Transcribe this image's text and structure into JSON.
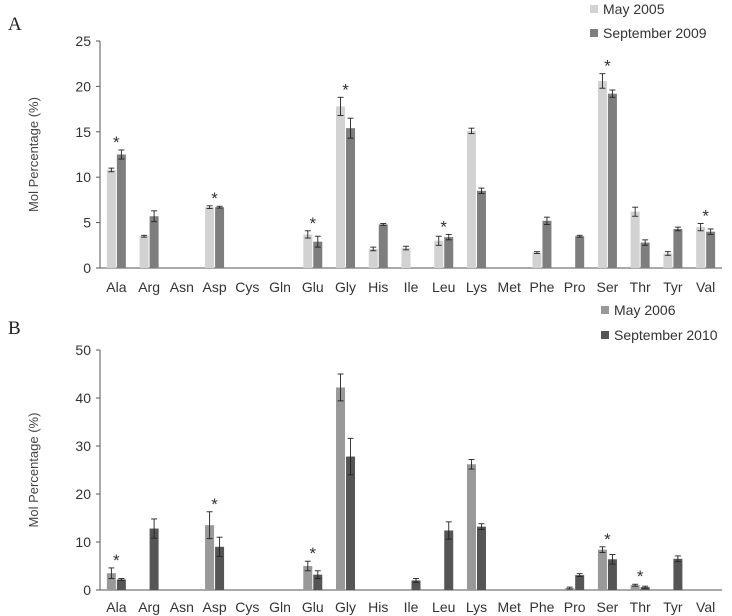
{
  "chart_data": [
    {
      "panel": "A",
      "type": "bar",
      "ylabel": "Mol Percentage (%)",
      "ylim": [
        0,
        25
      ],
      "yticks": [
        "0",
        "5",
        "10",
        "15",
        "20",
        "25"
      ],
      "categories": [
        "Ala",
        "Arg",
        "Asn",
        "Asp",
        "Cys",
        "Gln",
        "Glu",
        "Gly",
        "His",
        "Ile",
        "Leu",
        "Lys",
        "Met",
        "Phe",
        "Pro",
        "Ser",
        "Thr",
        "Tyr",
        "Val"
      ],
      "series": [
        {
          "name": "May 2005",
          "color": "#d2d2d2",
          "values": [
            10.8,
            3.5,
            0,
            6.7,
            0,
            0,
            3.7,
            17.8,
            2.1,
            2.2,
            3.0,
            15.1,
            0,
            1.7,
            0,
            20.6,
            6.2,
            1.6,
            4.5
          ],
          "errors": [
            0.2,
            0.1,
            0,
            0.15,
            0,
            0,
            0.4,
            1.0,
            0.2,
            0.2,
            0.5,
            0.3,
            0,
            0.1,
            0,
            0.8,
            0.5,
            0.2,
            0.4
          ]
        },
        {
          "name": "September 2009",
          "color": "#7e7e7e",
          "values": [
            12.5,
            5.7,
            0,
            6.7,
            0,
            0,
            2.9,
            15.4,
            4.8,
            0,
            3.4,
            8.5,
            0,
            5.2,
            3.5,
            19.2,
            2.8,
            4.3,
            4.0
          ],
          "errors": [
            0.5,
            0.6,
            0,
            0.1,
            0,
            0,
            0.6,
            1.1,
            0.1,
            0,
            0.3,
            0.3,
            0,
            0.4,
            0.1,
            0.4,
            0.3,
            0.2,
            0.3
          ]
        }
      ],
      "significant": [
        "Ala",
        "Asp",
        "Glu",
        "Gly",
        "Leu",
        "Ser",
        "Val"
      ]
    },
    {
      "panel": "B",
      "type": "bar",
      "ylabel": "Mol Percentage (%)",
      "ylim": [
        0,
        50
      ],
      "yticks": [
        "0",
        "10",
        "20",
        "30",
        "40",
        "50"
      ],
      "categories": [
        "Ala",
        "Arg",
        "Asn",
        "Asp",
        "Cys",
        "Gln",
        "Glu",
        "Gly",
        "His",
        "Ile",
        "Leu",
        "Lys",
        "Met",
        "Phe",
        "Pro",
        "Ser",
        "Thr",
        "Tyr",
        "Val"
      ],
      "series": [
        {
          "name": "May 2006",
          "color": "#999999",
          "values": [
            3.5,
            0,
            0,
            13.5,
            0,
            0,
            5.0,
            42.2,
            0,
            0,
            0,
            26.2,
            0,
            0,
            0.4,
            8.4,
            1.0,
            0,
            0
          ],
          "errors": [
            1.1,
            0,
            0,
            2.8,
            0,
            0,
            1.0,
            2.8,
            0,
            0,
            0,
            1.0,
            0,
            0,
            0.2,
            0.6,
            0.2,
            0,
            0
          ]
        },
        {
          "name": "September 2010",
          "color": "#555555",
          "values": [
            2.2,
            12.8,
            0,
            9.0,
            0,
            0,
            3.2,
            27.8,
            0,
            2.0,
            12.4,
            13.2,
            0,
            0,
            3.1,
            6.4,
            0.6,
            6.5,
            0
          ],
          "errors": [
            0.2,
            2.0,
            0,
            2.0,
            0,
            0,
            0.8,
            3.8,
            0,
            0.4,
            1.8,
            0.6,
            0,
            0,
            0.3,
            1.0,
            0.2,
            0.6,
            0
          ]
        }
      ],
      "significant": [
        "Ala",
        "Asp",
        "Glu",
        "Ser",
        "Thr"
      ]
    }
  ]
}
